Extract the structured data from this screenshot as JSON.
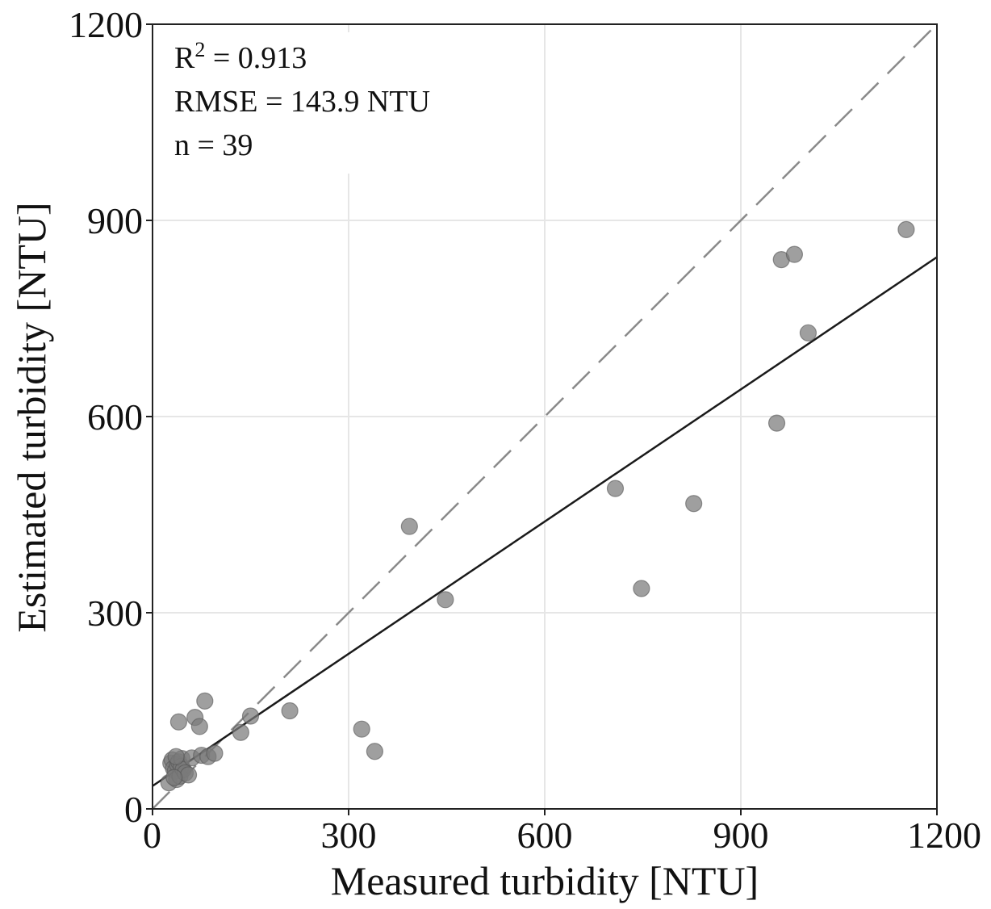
{
  "chart_data": {
    "type": "scatter",
    "xlabel": "Measured turbidity [NTU]",
    "ylabel": "Estimated turbidity [NTU]",
    "xlim": [
      0,
      1200
    ],
    "ylim": [
      0,
      1200
    ],
    "xticks": [
      "0",
      "300",
      "600",
      "900",
      "1200"
    ],
    "yticks": [
      "0",
      "300",
      "600",
      "900",
      "1200"
    ],
    "grid": true,
    "annotations": {
      "r2_prefix": "R",
      "r2_sup": "2",
      "r2_value": " = 0.913",
      "rmse": "RMSE = 143.9 NTU",
      "n": "n = 39"
    },
    "one_to_one_line": {
      "style": "dashed",
      "color": "#8a8a8a",
      "from": [
        0,
        0
      ],
      "to": [
        1200,
        1200
      ]
    },
    "regression_line": {
      "style": "solid",
      "color": "#1a1a1a",
      "intercept": 35,
      "slope": 0.674
    },
    "marker_color": "#7a7a7a",
    "points": [
      [
        25,
        40
      ],
      [
        28,
        70
      ],
      [
        30,
        75
      ],
      [
        32,
        62
      ],
      [
        35,
        58
      ],
      [
        37,
        45
      ],
      [
        38,
        68
      ],
      [
        40,
        72
      ],
      [
        42,
        50
      ],
      [
        44,
        65
      ],
      [
        45,
        77
      ],
      [
        47,
        60
      ],
      [
        50,
        55
      ],
      [
        55,
        52
      ],
      [
        40,
        133
      ],
      [
        60,
        78
      ],
      [
        65,
        140
      ],
      [
        72,
        126
      ],
      [
        75,
        82
      ],
      [
        80,
        165
      ],
      [
        85,
        80
      ],
      [
        95,
        85
      ],
      [
        135,
        117
      ],
      [
        150,
        142
      ],
      [
        210,
        150
      ],
      [
        320,
        122
      ],
      [
        340,
        88
      ],
      [
        393,
        432
      ],
      [
        448,
        320
      ],
      [
        708,
        490
      ],
      [
        748,
        337
      ],
      [
        828,
        467
      ],
      [
        955,
        590
      ],
      [
        962,
        840
      ],
      [
        982,
        848
      ],
      [
        1003,
        728
      ],
      [
        1153,
        886
      ],
      [
        33,
        48
      ],
      [
        36,
        80
      ]
    ]
  }
}
